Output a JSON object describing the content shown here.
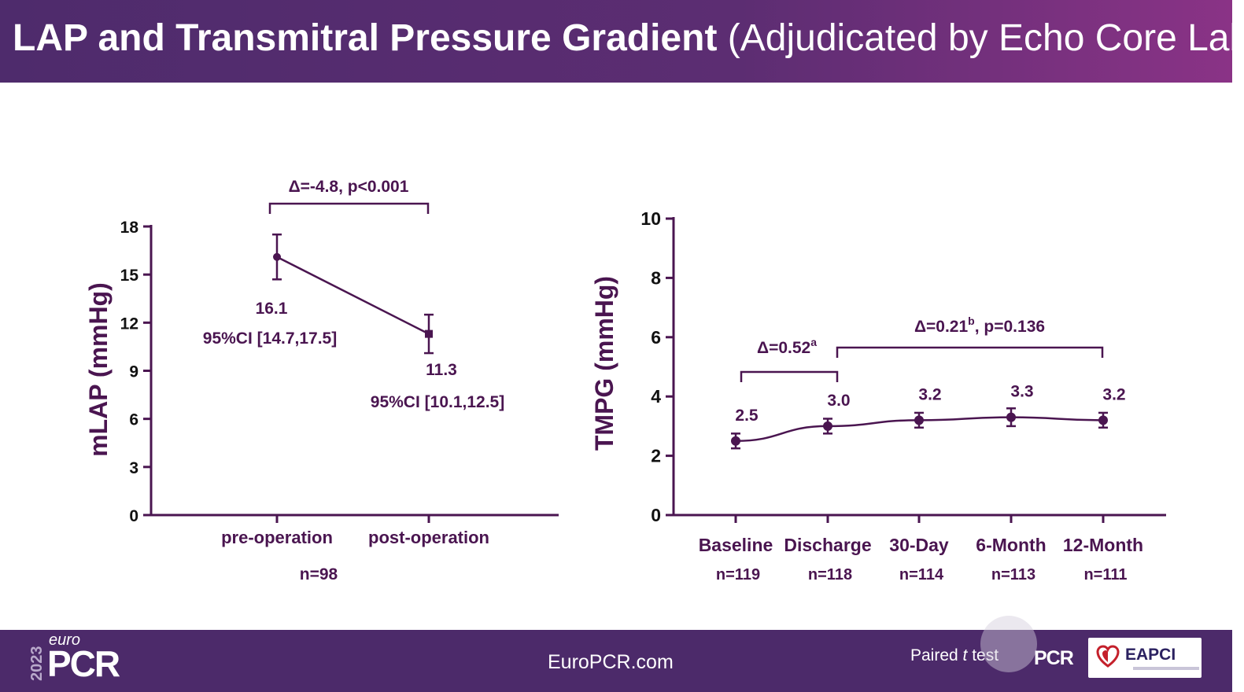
{
  "header": {
    "title_bold": "LAP and Transmitral Pressure Gradient",
    "title_normal": "(Adjudicated by Echo Core Lab)"
  },
  "footer": {
    "logo_year": "2023",
    "logo_euro": "euro",
    "logo_pcr": "PCR",
    "site": "EuroPCR.com",
    "test_prefix": "Paired ",
    "test_italic": "t",
    "test_suffix": " test",
    "pcr_small": "PCR",
    "eapci": "EAPCI"
  },
  "colors": {
    "primary": "#4a1550",
    "header": "#5c2d72",
    "footer": "#4c2a6a",
    "heart": "#c4202b"
  },
  "chart_data": [
    {
      "type": "line",
      "ylabel": "mLAP (mmHg)",
      "categories": [
        "pre-operation",
        "post-operation"
      ],
      "values": [
        16.1,
        11.3
      ],
      "ci": [
        [
          14.7,
          17.5
        ],
        [
          10.1,
          12.5
        ]
      ],
      "value_labels": [
        "16.1",
        "11.3"
      ],
      "ci_labels": [
        "95%CI [14.7,17.5]",
        "95%CI [10.1,12.5]"
      ],
      "n_label": "n=98",
      "comparison": "Δ=-4.8, p<0.001",
      "ylim": [
        0,
        18
      ],
      "yticks": [
        0,
        3,
        6,
        9,
        12,
        15,
        18
      ]
    },
    {
      "type": "line",
      "ylabel": "TMPG (mmHg)",
      "categories": [
        "Baseline",
        "Discharge",
        "30-Day",
        "6-Month",
        "12-Month"
      ],
      "n": [
        "n=119",
        "n=118",
        "n=114",
        "n=113",
        "n=111"
      ],
      "values": [
        2.5,
        3.0,
        3.2,
        3.3,
        3.2
      ],
      "error": [
        [
          2.25,
          2.75
        ],
        [
          2.75,
          3.25
        ],
        [
          2.95,
          3.45
        ],
        [
          3.0,
          3.6
        ],
        [
          2.95,
          3.45
        ]
      ],
      "value_labels": [
        "2.5",
        "3.0",
        "3.2",
        "3.3",
        "3.2"
      ],
      "ylim": [
        0,
        10
      ],
      "yticks": [
        0,
        2,
        4,
        6,
        8,
        10
      ],
      "comparisons": [
        {
          "delta": "Δ=0.52",
          "sup": "a",
          "rest": ""
        },
        {
          "delta": "Δ=0.21",
          "sup": "b",
          "rest": ", p=0.136"
        }
      ]
    }
  ]
}
